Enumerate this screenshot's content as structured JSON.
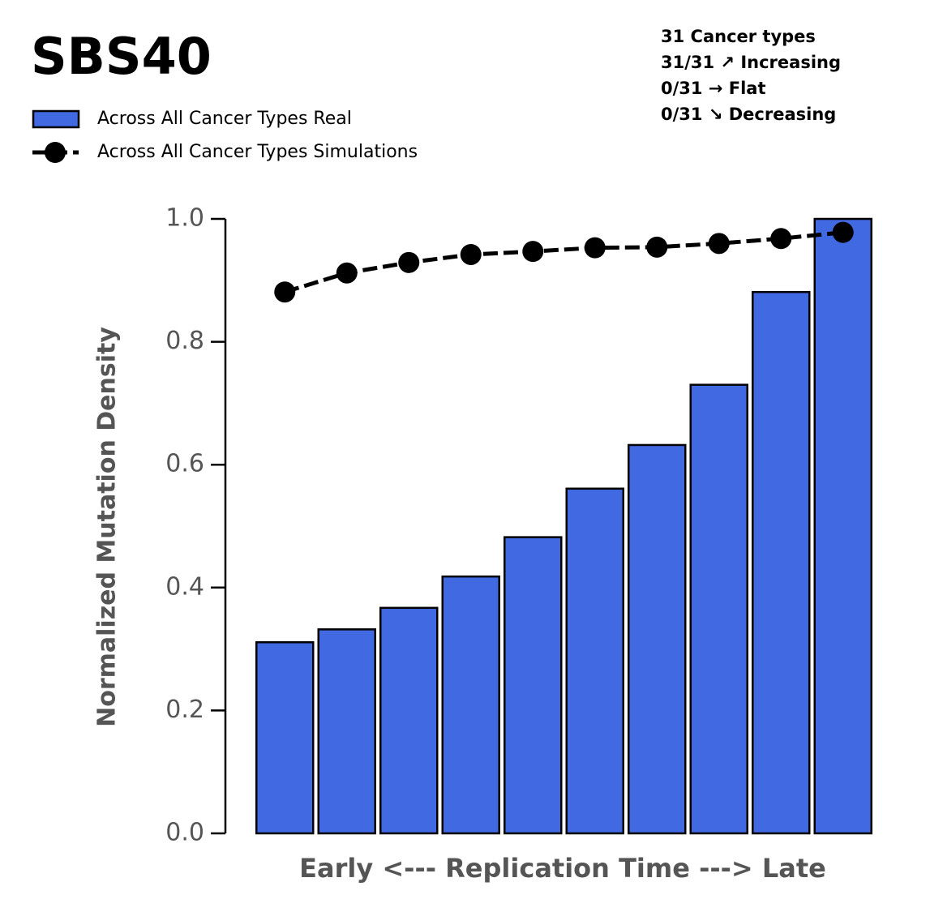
{
  "chart_data": {
    "type": "bar",
    "title": "SBS40",
    "annotations": [
      "31 Cancer types",
      "31/31 ↗ Increasing",
      "0/31 → Flat",
      "0/31 ↘ Decreasing"
    ],
    "ylabel": "Normalized Mutation Density",
    "xlabel": "Early <--- Replication Time ---> Late",
    "categories": [
      null,
      null,
      null,
      null,
      null,
      null,
      null,
      null,
      null,
      null
    ],
    "series": [
      {
        "name": "Across All Cancer Types Real",
        "type": "bar",
        "color": "#4169e1",
        "values": [
          0.311,
          0.332,
          0.367,
          0.418,
          0.482,
          0.561,
          0.632,
          0.73,
          0.881,
          1.0
        ]
      },
      {
        "name": "Across All Cancer Types Simulations",
        "type": "line",
        "color": "#000000",
        "dashed": true,
        "values": [
          0.881,
          0.912,
          0.929,
          0.942,
          0.947,
          0.953,
          0.954,
          0.96,
          0.968,
          0.978
        ]
      }
    ],
    "ylim": [
      0,
      1
    ],
    "yticks": [
      {
        "value": 0,
        "label": "0.0"
      },
      0.2,
      0.4,
      0.6,
      0.8,
      {
        "value": 1,
        "label": "1.0"
      }
    ],
    "grid": false
  }
}
